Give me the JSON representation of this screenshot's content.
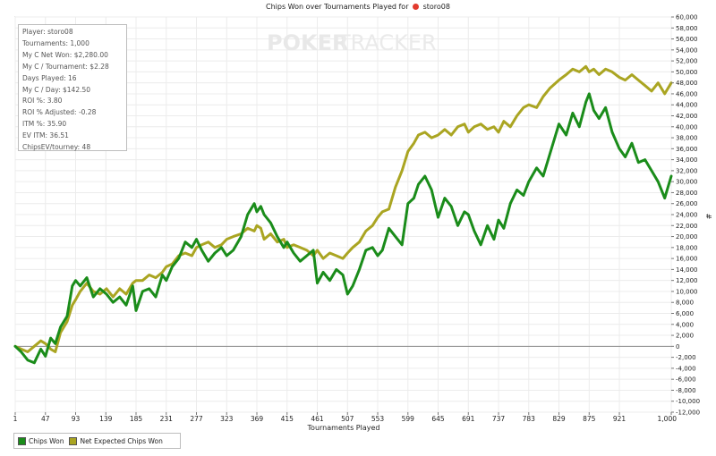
{
  "title": {
    "prefix": "Chips Won over Tournaments Played for",
    "player": "storo08",
    "icon": "pokerstars-logo-icon"
  },
  "watermark": {
    "text1": "POKER",
    "text2": "TRACKER"
  },
  "stats": [
    "Player: storo08",
    "Tournaments: 1,000",
    "My C Net Won: $2,280.00",
    "My C / Tournament: $2.28",
    "Days Played: 16",
    "My C / Day: $142.50",
    "ROI %: 3.80",
    "ROI % Adjusted: -0.28",
    "ITM %: 35.90",
    "EV ITM: 36.51",
    "ChipsEV/tourney: 48"
  ],
  "legend": {
    "position": "bottom-left",
    "items": [
      {
        "label": "Chips Won",
        "color": "#1a8c1a"
      },
      {
        "label": "Net Expected Chips Won",
        "color": "#aaa522"
      }
    ]
  },
  "chart_data": {
    "type": "line",
    "xlabel": "Tournaments Played",
    "ylabel": "#",
    "xlim": [
      1,
      1000
    ],
    "ylim": [
      -12000,
      60000
    ],
    "grid": true,
    "x_ticks": [
      "1",
      "47",
      "93",
      "139",
      "185",
      "231",
      "277",
      "323",
      "369",
      "415",
      "461",
      "507",
      "553",
      "599",
      "645",
      "691",
      "737",
      "783",
      "829",
      "875",
      "921",
      "1,000"
    ],
    "x_tick_values": [
      1,
      47,
      93,
      139,
      185,
      231,
      277,
      323,
      369,
      415,
      461,
      507,
      553,
      599,
      645,
      691,
      737,
      783,
      829,
      875,
      921,
      1000
    ],
    "y_ticks": [
      "60,000",
      "58,000",
      "56,000",
      "54,000",
      "52,000",
      "50,000",
      "48,000",
      "46,000",
      "44,000",
      "42,000",
      "40,000",
      "38,000",
      "36,000",
      "34,000",
      "32,000",
      "30,000",
      "28,000",
      "26,000",
      "24,000",
      "22,000",
      "20,000",
      "18,000",
      "16,000",
      "14,000",
      "12,000",
      "10,000",
      "8,000",
      "6,000",
      "4,000",
      "2,000",
      "0",
      "-2,000",
      "-4,000",
      "-6,000",
      "-8,000",
      "-10,000",
      "-12,000"
    ],
    "y_tick_values": [
      60000,
      58000,
      56000,
      54000,
      52000,
      50000,
      48000,
      46000,
      44000,
      42000,
      40000,
      38000,
      36000,
      34000,
      32000,
      30000,
      28000,
      26000,
      24000,
      22000,
      20000,
      18000,
      16000,
      14000,
      12000,
      10000,
      8000,
      6000,
      4000,
      2000,
      0,
      -2000,
      -4000,
      -6000,
      -8000,
      -10000,
      -12000
    ],
    "series": [
      {
        "name": "Chips Won",
        "color": "#1a8c1a",
        "x": [
          1,
          10,
          20,
          30,
          40,
          47,
          55,
          62,
          70,
          80,
          88,
          93,
          100,
          110,
          120,
          130,
          140,
          150,
          160,
          170,
          180,
          185,
          195,
          205,
          215,
          225,
          231,
          240,
          250,
          260,
          270,
          277,
          285,
          295,
          305,
          315,
          323,
          333,
          345,
          355,
          365,
          369,
          375,
          380,
          390,
          400,
          410,
          415,
          425,
          435,
          445,
          455,
          461,
          470,
          480,
          490,
          500,
          507,
          515,
          525,
          535,
          545,
          553,
          560,
          570,
          580,
          590,
          599,
          608,
          615,
          625,
          635,
          645,
          655,
          665,
          675,
          685,
          691,
          700,
          710,
          720,
          730,
          737,
          745,
          755,
          765,
          775,
          783,
          795,
          805,
          815,
          829,
          840,
          850,
          860,
          870,
          875,
          882,
          890,
          900,
          910,
          921,
          930,
          940,
          950,
          960,
          970,
          980,
          990,
          1000
        ],
        "y": [
          0,
          -1000,
          -2500,
          -3000,
          -500,
          -1800,
          1500,
          500,
          3500,
          5500,
          11000,
          12000,
          11000,
          12500,
          9000,
          10500,
          9500,
          8000,
          9000,
          7500,
          11000,
          6500,
          10000,
          10500,
          9000,
          13000,
          12000,
          14500,
          16000,
          19000,
          18000,
          19500,
          17500,
          15500,
          17000,
          18000,
          16500,
          17500,
          20000,
          24000,
          26000,
          24500,
          25500,
          24000,
          22500,
          20000,
          18000,
          19000,
          17000,
          15500,
          16500,
          17500,
          11500,
          13500,
          12000,
          14000,
          13000,
          9500,
          11000,
          14000,
          17500,
          18000,
          16500,
          17500,
          21500,
          20000,
          18500,
          26000,
          27000,
          29500,
          31000,
          28500,
          23500,
          27000,
          25500,
          22000,
          24500,
          24000,
          21000,
          18500,
          22000,
          19500,
          23000,
          21500,
          26000,
          28500,
          27500,
          30000,
          32500,
          31000,
          35000,
          40500,
          38500,
          42500,
          40000,
          44500,
          46000,
          43000,
          41500,
          43500,
          39000,
          36000,
          34500,
          37000,
          33500,
          34000,
          32000,
          30000,
          27000,
          31000
        ]
      },
      {
        "name": "Net Expected Chips Won",
        "color": "#aaa522",
        "x": [
          1,
          10,
          20,
          30,
          40,
          47,
          55,
          62,
          70,
          80,
          88,
          93,
          100,
          110,
          120,
          130,
          140,
          150,
          160,
          170,
          180,
          185,
          195,
          205,
          215,
          225,
          231,
          240,
          250,
          260,
          270,
          277,
          285,
          295,
          305,
          315,
          323,
          333,
          345,
          355,
          365,
          369,
          375,
          380,
          390,
          400,
          410,
          415,
          425,
          435,
          445,
          455,
          461,
          470,
          480,
          490,
          500,
          507,
          515,
          525,
          535,
          545,
          553,
          560,
          570,
          580,
          590,
          599,
          608,
          615,
          625,
          635,
          645,
          655,
          665,
          675,
          685,
          691,
          700,
          710,
          720,
          730,
          737,
          745,
          755,
          765,
          775,
          783,
          795,
          805,
          815,
          829,
          840,
          850,
          860,
          870,
          875,
          882,
          890,
          900,
          910,
          921,
          930,
          940,
          950,
          960,
          970,
          980,
          990,
          1000
        ],
        "y": [
          0,
          -500,
          -1000,
          0,
          1000,
          500,
          -500,
          -1000,
          2500,
          4500,
          7500,
          8500,
          10000,
          11500,
          10000,
          9500,
          10500,
          9000,
          10500,
          9500,
          11500,
          12000,
          12000,
          13000,
          12500,
          13500,
          14500,
          15000,
          16500,
          17000,
          16500,
          18000,
          18500,
          19000,
          18000,
          18500,
          19500,
          20000,
          20500,
          21500,
          21000,
          22000,
          21500,
          19500,
          20500,
          19000,
          19500,
          18000,
          18500,
          18000,
          17500,
          16500,
          17500,
          16000,
          17000,
          16500,
          16000,
          17000,
          18000,
          19000,
          21000,
          22000,
          23500,
          24500,
          25000,
          29000,
          32000,
          35500,
          37000,
          38500,
          39000,
          38000,
          38500,
          39500,
          38500,
          40000,
          40500,
          39000,
          40000,
          40500,
          39500,
          40000,
          39000,
          41000,
          40000,
          42000,
          43500,
          44000,
          43500,
          45500,
          47000,
          48500,
          49500,
          50500,
          50000,
          51000,
          50000,
          50500,
          49500,
          50500,
          50000,
          49000,
          48500,
          49500,
          48500,
          47500,
          46500,
          48000,
          46000,
          48000
        ]
      }
    ]
  }
}
